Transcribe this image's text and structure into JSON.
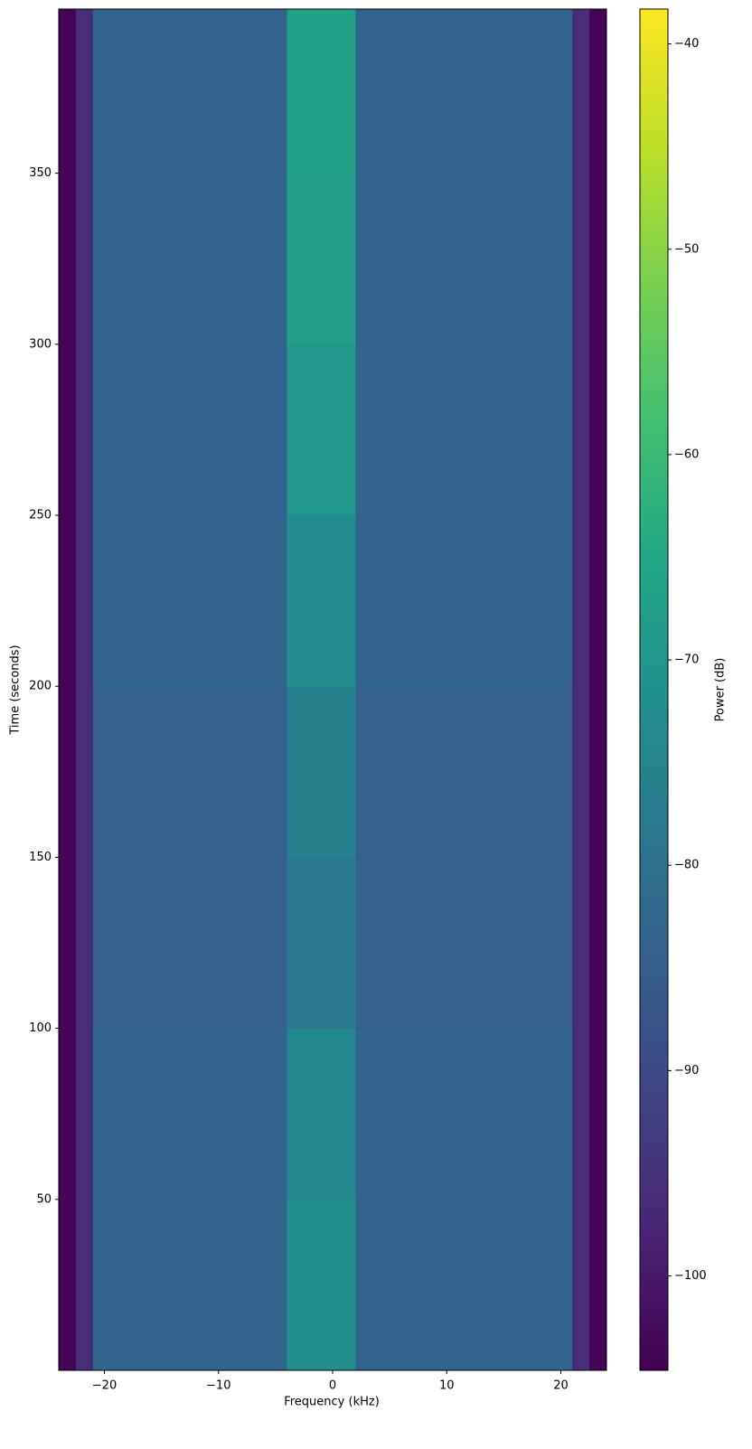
{
  "chart_data": {
    "type": "heatmap",
    "xlabel": "Frequency (kHz)",
    "ylabel": "Time (seconds)",
    "colorbar_label": "Power (dB)",
    "x": [
      -24,
      -22.5,
      -21,
      -4,
      2,
      21,
      22.5,
      24
    ],
    "y": [
      0,
      50,
      100,
      150,
      200,
      250,
      300,
      350,
      398
    ],
    "z": [
      [
        -104,
        -96,
        -83,
        -72,
        -83,
        -96,
        -104
      ],
      [
        -104,
        -96,
        -83,
        -74,
        -83,
        -96,
        -104
      ],
      [
        -104,
        -96,
        -84,
        -78,
        -84,
        -96,
        -104
      ],
      [
        -104,
        -96,
        -84,
        -76,
        -84,
        -96,
        -104
      ],
      [
        -104,
        -96,
        -83,
        -73,
        -83,
        -96,
        -104
      ],
      [
        -104,
        -96,
        -83,
        -70,
        -83,
        -96,
        -104
      ],
      [
        -104,
        -96,
        -83,
        -68,
        -83,
        -96,
        -104
      ],
      [
        -104,
        -96,
        -83,
        -67,
        -83,
        -96,
        -104
      ]
    ],
    "xlim": [
      -24,
      24
    ],
    "ylim": [
      0,
      398
    ],
    "clim": [
      -104.6,
      -38.3
    ],
    "colormap": "viridis",
    "xticks": [
      {
        "value": -20,
        "label": "−20"
      },
      {
        "value": -10,
        "label": "−10"
      },
      0,
      10,
      20
    ],
    "yticks": [
      50,
      100,
      150,
      200,
      250,
      300,
      350
    ],
    "cticks": [
      {
        "value": -40,
        "label": "−40"
      },
      {
        "value": -50,
        "label": "−50"
      },
      {
        "value": -60,
        "label": "−60"
      },
      {
        "value": -70,
        "label": "−70"
      },
      {
        "value": -80,
        "label": "−80"
      },
      {
        "value": -90,
        "label": "−90"
      },
      {
        "value": -100,
        "label": "−100"
      }
    ]
  }
}
